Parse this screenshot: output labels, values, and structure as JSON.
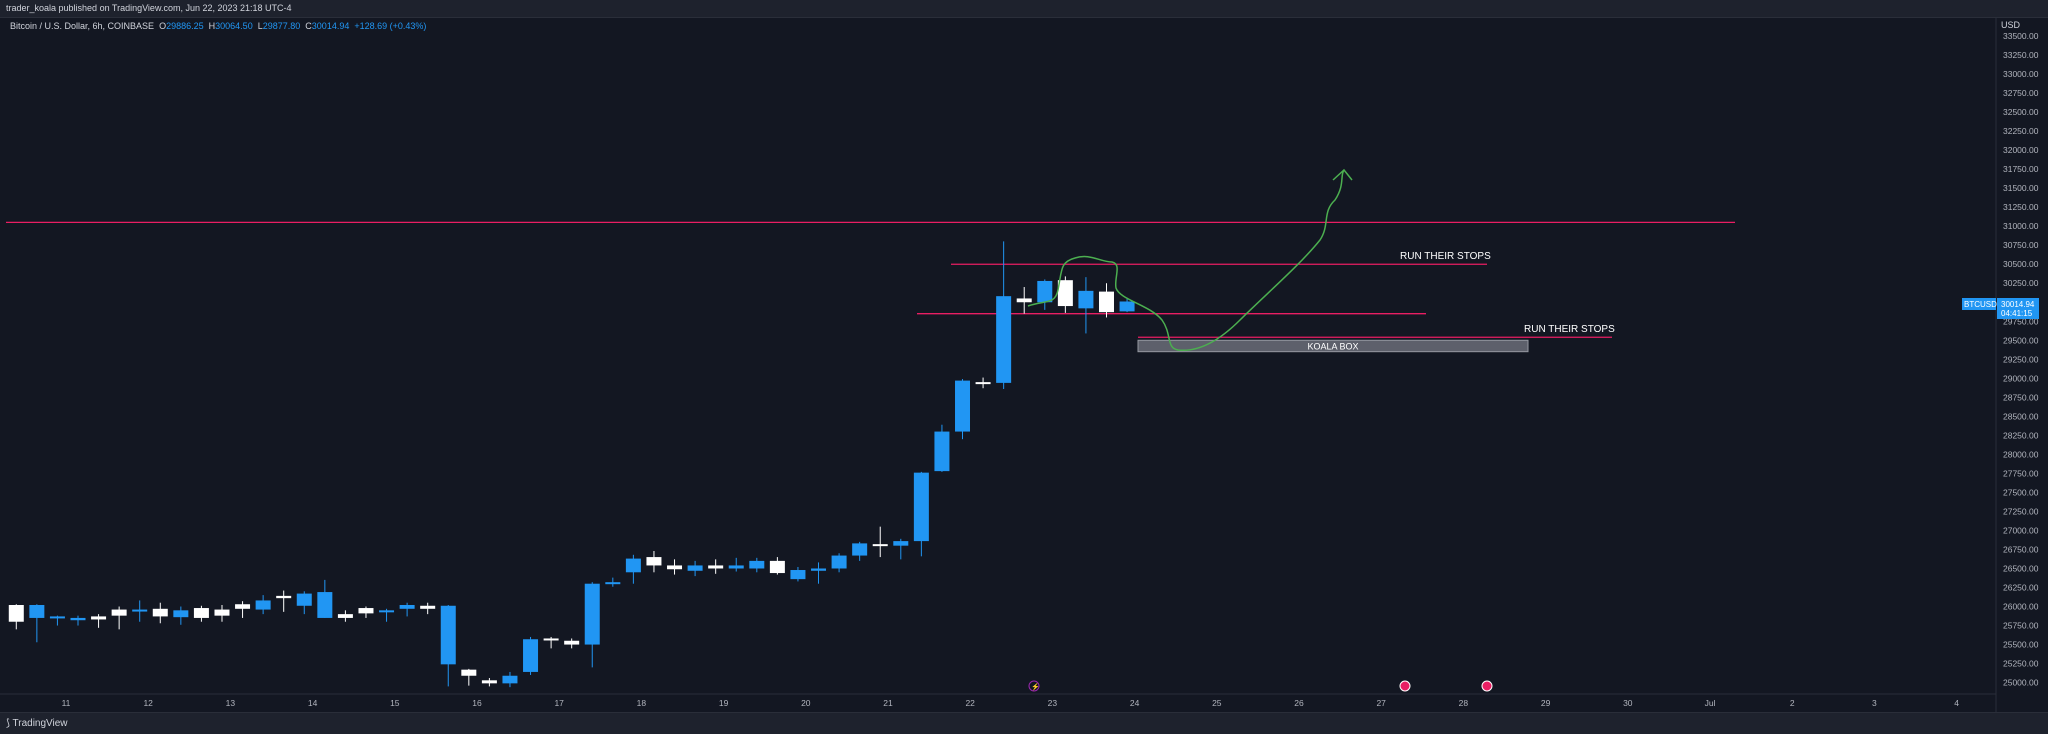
{
  "publish_line": "trader_koala published on TradingView.com, Jun 22, 2023 21:18 UTC-4",
  "legend": {
    "symbol": "Bitcoin / U.S. Dollar, 6h, COINBASE",
    "o_label": "O",
    "o_value": "29886.25",
    "h_label": "H",
    "h_value": "30064.50",
    "l_label": "L",
    "l_value": "29877.80",
    "c_label": "C",
    "c_value": "30014.94",
    "change": "+128.69 (+0.43%)"
  },
  "price_axis": {
    "currency": "USD"
  },
  "price_tag": {
    "symbol": "BTCUSD",
    "price": "30014.94",
    "countdown": "04:41:15"
  },
  "brand": "TradingView",
  "colors": {
    "bg": "#131722",
    "up": "#2196f3",
    "down": "#ffffff",
    "level": "#e91e63",
    "path": "#4caf50"
  },
  "chart_data": {
    "type": "candlestick",
    "timeframe": "6h",
    "ylim": [
      24850,
      33750
    ],
    "yticks": [
      "33500.00",
      "33250.00",
      "33000.00",
      "32750.00",
      "32500.00",
      "32250.00",
      "32000.00",
      "31750.00",
      "31500.00",
      "31250.00",
      "31000.00",
      "30750.00",
      "30500.00",
      "30250.00",
      "30000.00",
      "29750.00",
      "29500.00",
      "29250.00",
      "29000.00",
      "28750.00",
      "28500.00",
      "28250.00",
      "28000.00",
      "27750.00",
      "27500.00",
      "27250.00",
      "27000.00",
      "26750.00",
      "26500.00",
      "26250.00",
      "26000.00",
      "25750.00",
      "25500.00",
      "25250.00",
      "25000.00"
    ],
    "xticks": [
      "11",
      "12",
      "13",
      "14",
      "15",
      "16",
      "17",
      "18",
      "19",
      "20",
      "21",
      "22",
      "23",
      "24",
      "25",
      "26",
      "27",
      "28",
      "29",
      "30",
      "Jul",
      "2",
      "3",
      "4"
    ],
    "candles": [
      [
        26020,
        25800,
        26030,
        25700
      ],
      [
        25850,
        26020,
        26030,
        25530
      ],
      [
        25850,
        25870,
        25880,
        25750
      ],
      [
        25820,
        25850,
        25880,
        25750
      ],
      [
        25870,
        25830,
        25900,
        25720
      ],
      [
        25960,
        25880,
        26000,
        25700
      ],
      [
        25950,
        25960,
        26080,
        25800
      ],
      [
        25970,
        25870,
        26050,
        25780
      ],
      [
        25860,
        25950,
        26000,
        25760
      ],
      [
        25980,
        25850,
        26010,
        25800
      ],
      [
        25960,
        25880,
        26020,
        25800
      ],
      [
        26030,
        25970,
        26070,
        25850
      ],
      [
        25960,
        26080,
        26150,
        25900
      ],
      [
        26140,
        26110,
        26210,
        25930
      ],
      [
        26010,
        26170,
        26200,
        25900
      ],
      [
        25850,
        26190,
        26350,
        25850
      ],
      [
        25900,
        25850,
        25950,
        25800
      ],
      [
        25980,
        25910,
        26000,
        25850
      ],
      [
        25950,
        25950,
        25970,
        25800
      ],
      [
        25970,
        26020,
        26050,
        25870
      ],
      [
        26010,
        25970,
        26050,
        25900
      ],
      [
        25240,
        26010,
        26020,
        24950
      ],
      [
        25170,
        25090,
        25180,
        24960
      ],
      [
        25030,
        24990,
        25060,
        24950
      ],
      [
        24990,
        25090,
        25140,
        24940
      ],
      [
        25140,
        25570,
        25600,
        25100
      ],
      [
        25580,
        25560,
        25600,
        25450
      ],
      [
        25550,
        25500,
        25580,
        25450
      ],
      [
        25500,
        26300,
        26320,
        25200
      ],
      [
        26300,
        26320,
        26380,
        26260
      ],
      [
        26450,
        26630,
        26680,
        26300
      ],
      [
        26650,
        26540,
        26730,
        26450
      ],
      [
        26540,
        26490,
        26620,
        26420
      ],
      [
        26470,
        26540,
        26600,
        26400
      ],
      [
        26540,
        26500,
        26620,
        26430
      ],
      [
        26500,
        26540,
        26640,
        26460
      ],
      [
        26500,
        26600,
        26640,
        26450
      ],
      [
        26600,
        26440,
        26650,
        26420
      ],
      [
        26360,
        26480,
        26520,
        26330
      ],
      [
        26470,
        26500,
        26580,
        26300
      ],
      [
        26500,
        26670,
        26700,
        26450
      ],
      [
        26670,
        26830,
        26850,
        26600
      ],
      [
        26820,
        26800,
        27050,
        26650
      ],
      [
        26800,
        26860,
        26890,
        26620
      ],
      [
        26860,
        27760,
        27770,
        26660
      ],
      [
        27780,
        28300,
        28390,
        27770
      ],
      [
        28300,
        28970,
        28990,
        28200
      ],
      [
        28950,
        28930,
        29010,
        28870
      ],
      [
        28940,
        30080,
        30800,
        28860
      ],
      [
        30050,
        30000,
        30200,
        29850
      ],
      [
        30000,
        30280,
        30300,
        29900
      ],
      [
        30290,
        29950,
        30340,
        29860
      ],
      [
        29920,
        30150,
        30330,
        29590
      ],
      [
        30140,
        29870,
        30250,
        29800
      ],
      [
        29880,
        30010,
        30060,
        29870
      ]
    ],
    "levels": [
      31050,
      30500,
      29850,
      29540
    ],
    "zone": {
      "label": "KOALA BOX",
      "top": 29500,
      "bottom": 29350
    },
    "annotations": [
      "RUN THEIR STOPS",
      "RUN THEIR STOPS"
    ]
  }
}
